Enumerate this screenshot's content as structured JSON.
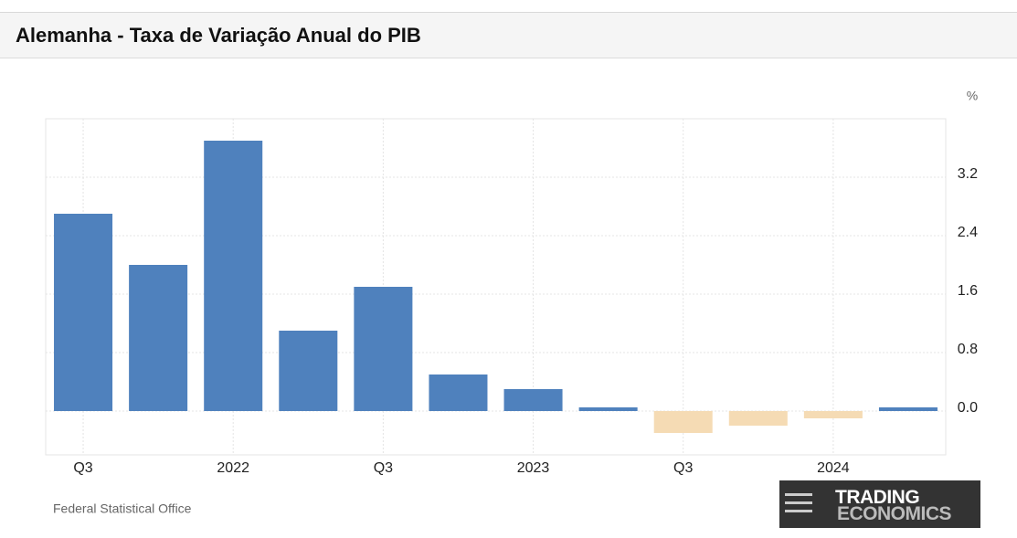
{
  "chart_data": {
    "type": "bar",
    "title": "Alemanha - Taxa de Variação Anual do PIB",
    "categories": [
      "Q3",
      null,
      "2022",
      null,
      "Q3",
      null,
      "2023",
      null,
      "Q3",
      null,
      "2024",
      null
    ],
    "values": [
      2.7,
      2.0,
      3.7,
      1.1,
      1.7,
      0.5,
      0.3,
      0.05,
      -0.3,
      -0.2,
      -0.1,
      0.05
    ],
    "color": "#4f81bd",
    "negative_color": "#f5dbb4",
    "ylim": [
      -0.6,
      4.0
    ],
    "yticks": [
      {
        "value": 0,
        "label": "0.0"
      },
      0.8,
      1.6,
      2.4,
      3.2
    ],
    "y_unit": "%",
    "grid": true,
    "source": "Federal Statistical Office",
    "logo": {
      "line1": "TRADING",
      "line2": "ECONOMICS"
    }
  }
}
